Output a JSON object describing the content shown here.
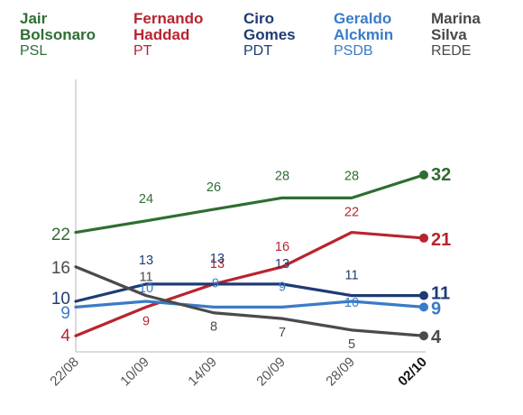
{
  "chart_data": {
    "type": "line",
    "x": [
      "22/08",
      "10/09",
      "14/09",
      "20/09",
      "28/09",
      "02/10"
    ],
    "series": [
      {
        "name": "Jair Bolsonaro",
        "party": "PSL",
        "color": "#2e6e32",
        "values": [
          22,
          24,
          26,
          28,
          28,
          32
        ]
      },
      {
        "name": "Fernando Haddad",
        "party": "PT",
        "color": "#b8242f",
        "values": [
          4,
          9,
          13,
          16,
          22,
          21
        ]
      },
      {
        "name": "Ciro Gomes",
        "party": "PDT",
        "color": "#1f3b73",
        "values": [
          10,
          13,
          13,
          13,
          11,
          11
        ]
      },
      {
        "name": "Geraldo Alckmin",
        "party": "PSDB",
        "color": "#3a7bc8",
        "values": [
          9,
          10,
          9,
          9,
          10,
          9
        ]
      },
      {
        "name": "Marina Silva",
        "party": "REDE",
        "color": "#4a4a4a",
        "values": [
          16,
          11,
          8,
          7,
          5,
          4
        ]
      }
    ],
    "title": "",
    "xlabel": "",
    "ylabel": "",
    "ylim": [
      0,
      36
    ],
    "grid": false
  },
  "legend": [
    {
      "name_lines": "Jair\nBolsonaro",
      "party": "PSL",
      "color": "#2e6e32"
    },
    {
      "name_lines": "Fernando\nHaddad",
      "party": "PT",
      "color": "#b8242f"
    },
    {
      "name_lines": "Ciro\nGomes",
      "party": "PDT",
      "color": "#1f3b73"
    },
    {
      "name_lines": "Geraldo\nAlckmin",
      "party": "PSDB",
      "color": "#3a7bc8"
    },
    {
      "name_lines": "Marina\nSilva",
      "party": "REDE",
      "color": "#4a4a4a"
    }
  ]
}
